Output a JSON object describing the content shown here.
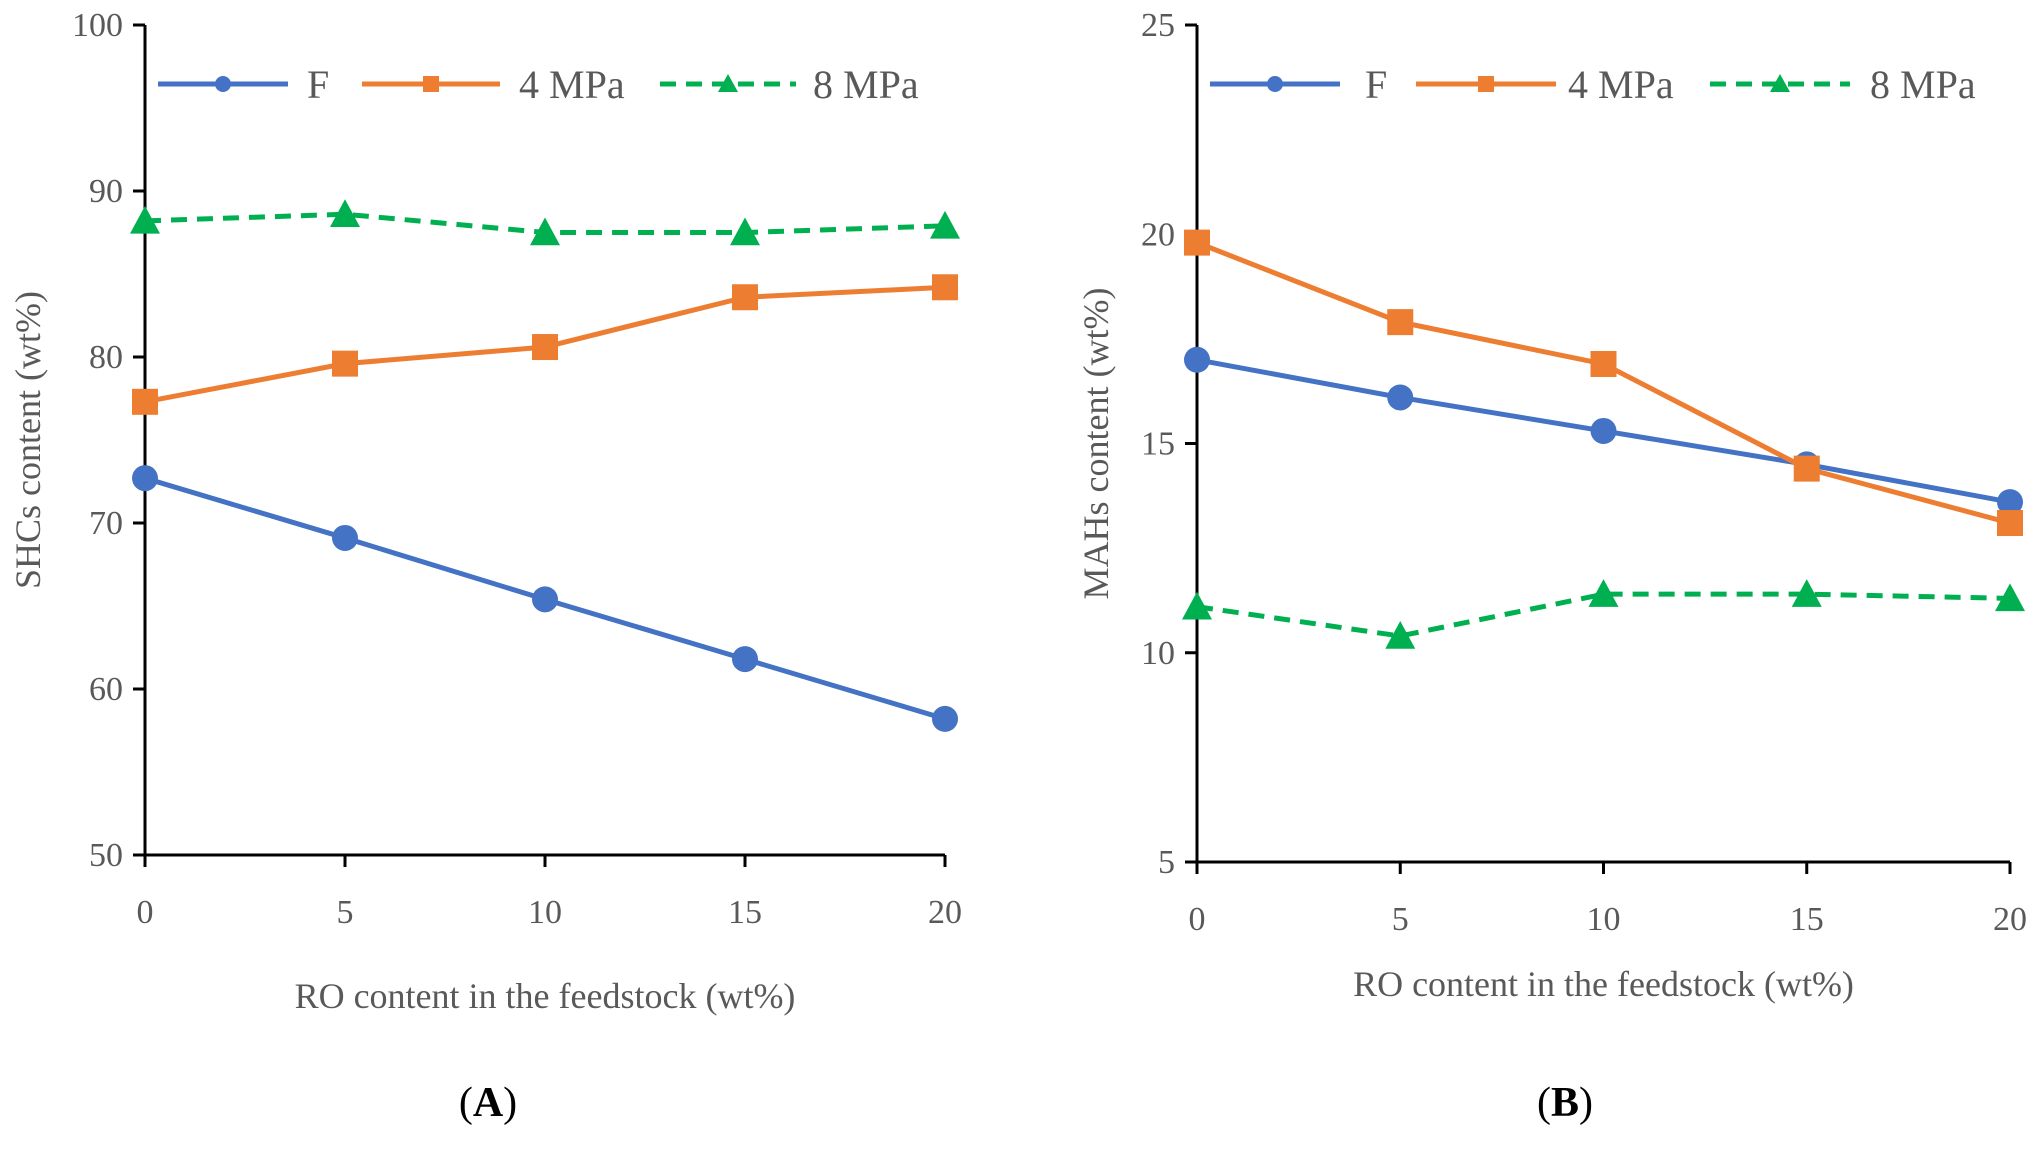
{
  "chart_data": [
    {
      "type": "line",
      "panel_label": "A",
      "title": "",
      "xlabel": "RO content in the feedstock (wt%)",
      "ylabel": "SHCs content (wt%)",
      "xlim": [
        0,
        20
      ],
      "ylim": [
        50,
        100
      ],
      "x_ticks": [
        "0",
        "5",
        "10",
        "15",
        "20"
      ],
      "y_ticks": [
        "50",
        "60",
        "70",
        "80",
        "90",
        "100"
      ],
      "grid": false,
      "legend_position": "top",
      "x": [
        0,
        5,
        10,
        15,
        20
      ],
      "series": [
        {
          "name": "F",
          "values": [
            72.7,
            69.1,
            65.4,
            61.8,
            58.2
          ],
          "color": "#4472C4",
          "marker": "circle",
          "dash": "solid"
        },
        {
          "name": "4 MPa",
          "values": [
            77.3,
            79.6,
            80.6,
            83.6,
            84.2
          ],
          "color": "#ED7D31",
          "marker": "square",
          "dash": "solid"
        },
        {
          "name": "8 MPa",
          "values": [
            88.2,
            88.6,
            87.5,
            87.5,
            87.9
          ],
          "color": "#00B050",
          "marker": "triangle",
          "dash": "dashed"
        }
      ]
    },
    {
      "type": "line",
      "panel_label": "B",
      "title": "",
      "xlabel": "RO content in the feedstock (wt%)",
      "ylabel": "MAHs content (wt%)",
      "xlim": [
        0,
        20
      ],
      "ylim": [
        5,
        25
      ],
      "x_ticks": [
        "0",
        "5",
        "10",
        "15",
        "20"
      ],
      "y_ticks": [
        "5",
        "10",
        "15",
        "20",
        "25"
      ],
      "grid": false,
      "legend_position": "top",
      "x": [
        0,
        5,
        10,
        15,
        20
      ],
      "series": [
        {
          "name": "F",
          "values": [
            17.0,
            16.1,
            15.3,
            14.5,
            13.6
          ],
          "color": "#4472C4",
          "marker": "circle",
          "dash": "solid"
        },
        {
          "name": "4 MPa",
          "values": [
            19.8,
            17.9,
            16.9,
            14.4,
            13.1
          ],
          "color": "#ED7D31",
          "marker": "square",
          "dash": "solid"
        },
        {
          "name": "8 MPa",
          "values": [
            11.1,
            10.4,
            11.4,
            11.4,
            11.3
          ],
          "color": "#00B050",
          "marker": "triangle",
          "dash": "dashed"
        }
      ]
    }
  ]
}
